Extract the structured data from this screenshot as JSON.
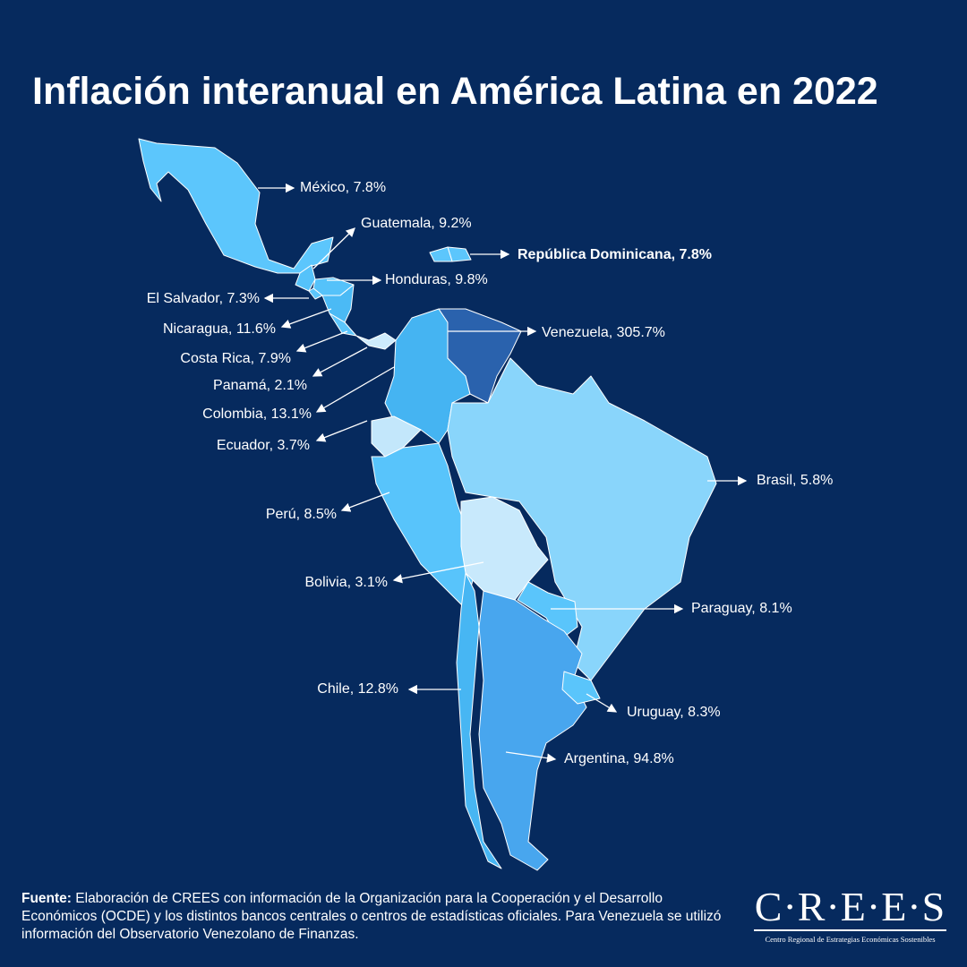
{
  "title": "Inflación interanual en América Latina en 2022",
  "countries": [
    {
      "label": "México, 7.8%",
      "color": "#5cc6fc"
    },
    {
      "label": "Guatemala, 9.2%",
      "color": "#55c2fa"
    },
    {
      "label": "República Dominicana, 7.8%",
      "color": "#5cc6fc"
    },
    {
      "label": "Honduras, 9.8%",
      "color": "#55c2fa"
    },
    {
      "label": "El Salvador, 7.3%",
      "color": "#5cc6fc"
    },
    {
      "label": "Nicaragua, 11.6%",
      "color": "#4bbaf5"
    },
    {
      "label": "Costa Rica, 7.9%",
      "color": "#5cc6fc"
    },
    {
      "label": "Panamá, 2.1%",
      "color": "#cdebfc"
    },
    {
      "label": "Colombia, 13.1%",
      "color": "#45b4f2"
    },
    {
      "label": "Ecuador, 3.7%",
      "color": "#c3e7fb"
    },
    {
      "label": "Venezuela, 305.7%",
      "color": "#2a62ad"
    },
    {
      "label": "Brasil, 5.8%",
      "color": "#89d5fb"
    },
    {
      "label": "Perú, 8.5%",
      "color": "#58c4fb"
    },
    {
      "label": "Bolivia, 3.1%",
      "color": "#c8e9fc"
    },
    {
      "label": "Paraguay, 8.1%",
      "color": "#5ac5fb"
    },
    {
      "label": "Chile, 12.8%",
      "color": "#47b6f3"
    },
    {
      "label": "Uruguay, 8.3%",
      "color": "#5ac5fb"
    },
    {
      "label": "Argentina, 94.8%",
      "color": "#48a6ee"
    }
  ],
  "source": {
    "lead": "Fuente:",
    "text": "Elaboración de CREES con información de la Organización para la Cooperación y el Desarrollo Económicos (OCDE) y los distintos bancos centrales o centros de estadísticas oficiales. Para Venezuela se utilizó información del Observatorio Venezolano de Finanzas."
  },
  "logo": {
    "name": "C·R·E·E·S",
    "subtitle": "Centro Regional de Estrategias Económicas Sostenibles"
  }
}
